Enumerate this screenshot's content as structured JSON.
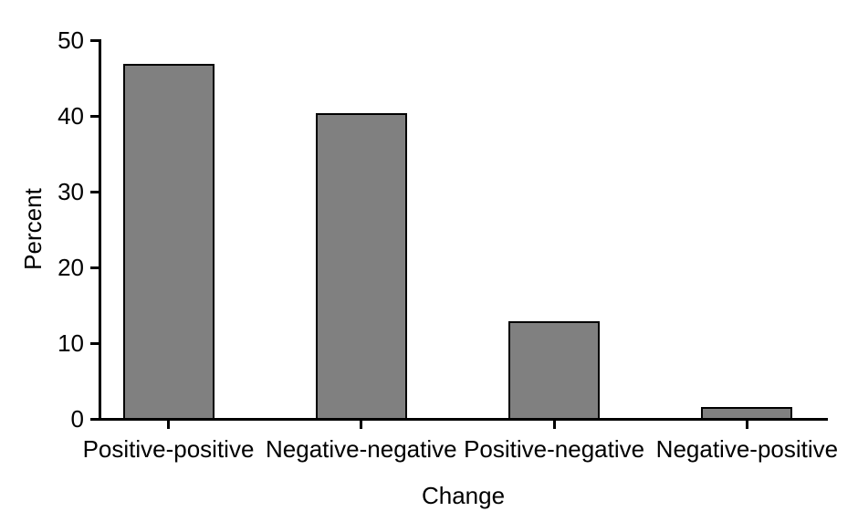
{
  "chart_data": {
    "type": "bar",
    "categories": [
      "Positive-positive",
      "Negative-negative",
      "Positive-negative",
      "Negative-positive"
    ],
    "values": [
      46.9,
      40.4,
      12.9,
      1.6
    ],
    "xlabel": "Change",
    "ylabel": "Percent",
    "ylim": [
      0,
      50
    ],
    "y_ticks": [
      0,
      10,
      20,
      30,
      40,
      50
    ],
    "grid": "off",
    "legend": "none",
    "bar_color": "#808080",
    "bar_border_color": "#000000",
    "axis_color": "#000000",
    "text_color": "#000000"
  }
}
